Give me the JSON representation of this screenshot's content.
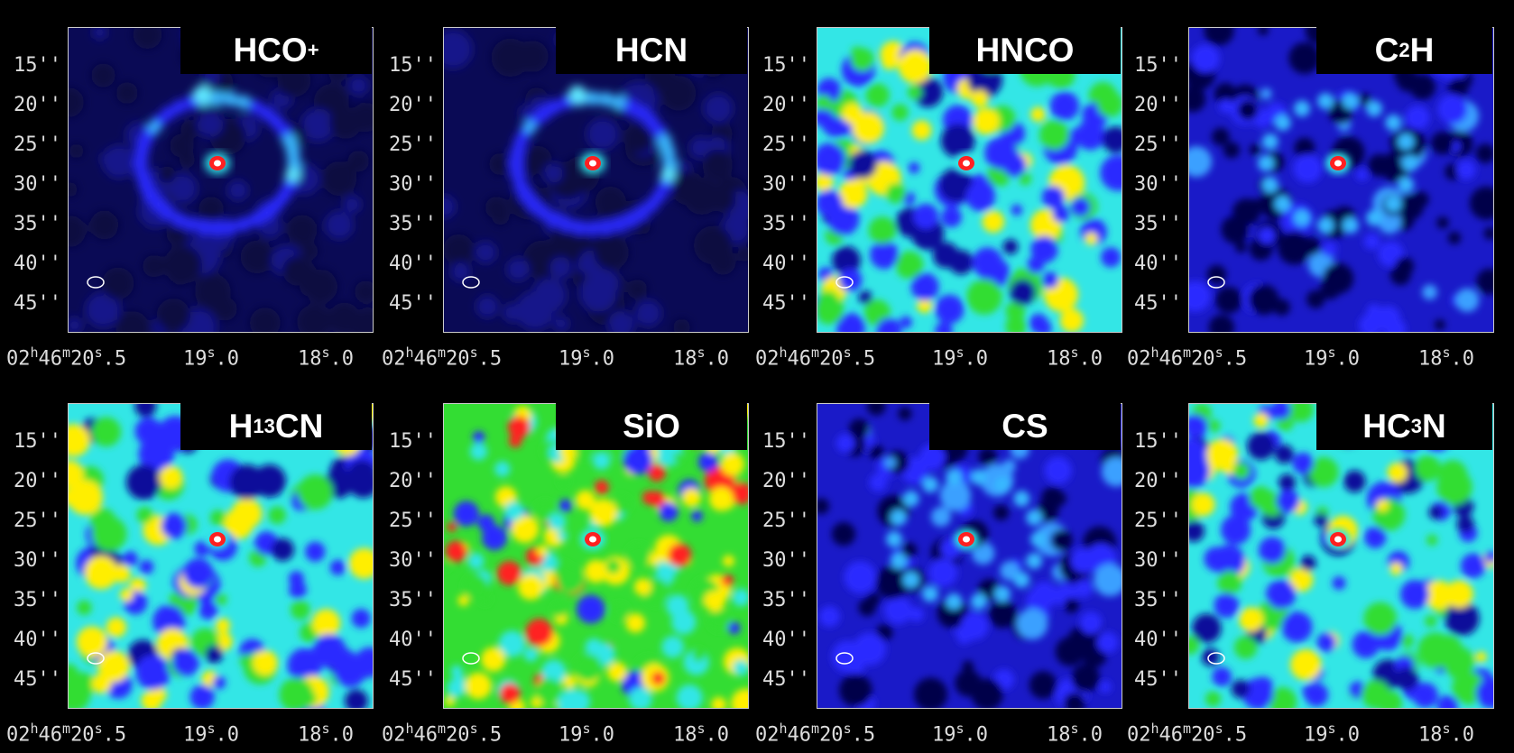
{
  "colors": {
    "background": "#000000",
    "map_low": "#0a0a55",
    "map_mid": "#2b2bff",
    "cyan": "#33e6e6",
    "green": "#33dd33",
    "yellow": "#ffee00",
    "red": "#ff2020",
    "peak": "#ffffff"
  },
  "y_ticks": [
    "15''",
    "20''",
    "25''",
    "30''",
    "35''",
    "40''",
    "45''"
  ],
  "x_ticks": {
    "first": {
      "pre": "02",
      "h": "h",
      "mid": "46",
      "m": "m",
      "post": "20",
      "s": "s",
      "tail": ".5"
    },
    "second": {
      "pre": "19",
      "s": "s",
      "tail": ".0"
    },
    "third": {
      "pre": "18",
      "s": "s",
      "tail": ".0"
    }
  },
  "panels": [
    {
      "name": "HCO+",
      "base": "HCO",
      "sup": "+",
      "sub": "",
      "post": "",
      "style": "ring"
    },
    {
      "name": "HCN",
      "base": "HCN",
      "sup": "",
      "sub": "",
      "post": "",
      "style": "ring"
    },
    {
      "name": "HNCO",
      "base": "HNCO",
      "sup": "",
      "sub": "",
      "post": "",
      "style": "noise-cyan"
    },
    {
      "name": "C2H",
      "base": "C",
      "sup": "",
      "sub": "2",
      "post": "H",
      "style": "dark"
    },
    {
      "name": "H13CN",
      "base": "H",
      "sup": "13",
      "sub": "",
      "post": "CN",
      "style": "noise-cyan"
    },
    {
      "name": "SiO",
      "base": "SiO",
      "sup": "",
      "sub": "",
      "post": "",
      "style": "noise-hot"
    },
    {
      "name": "CS",
      "base": "CS",
      "sup": "",
      "sub": "",
      "post": "",
      "style": "dark"
    },
    {
      "name": "HC3N",
      "base": "HC",
      "sup": "",
      "sub": "3",
      "post": "N",
      "style": "noise-cyan"
    }
  ]
}
